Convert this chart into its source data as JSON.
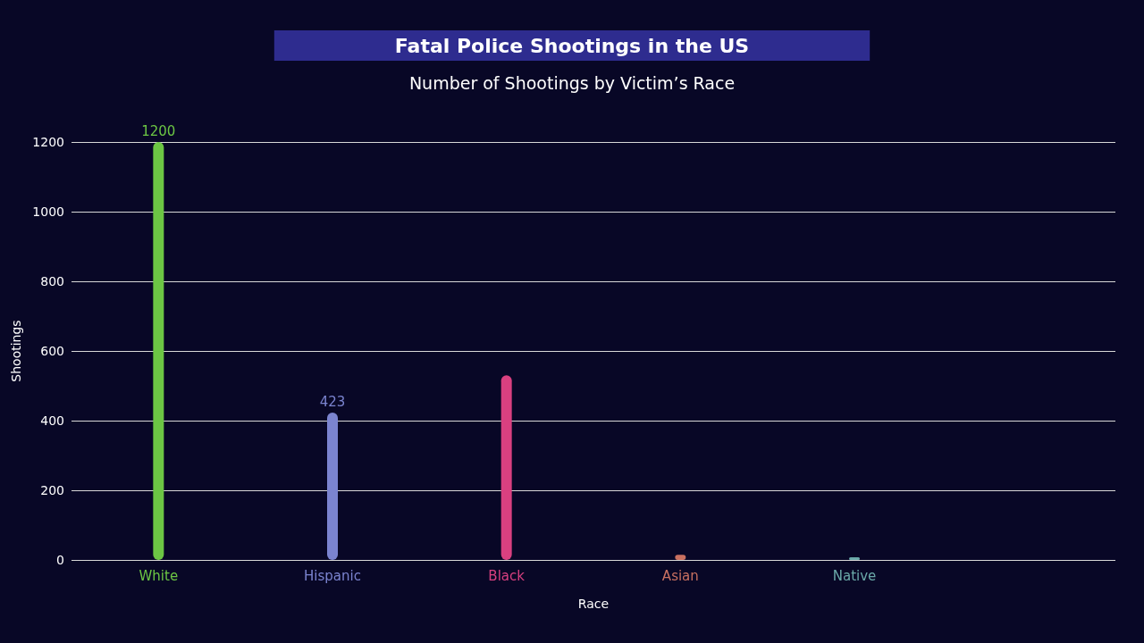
{
  "chart_data": {
    "type": "bar",
    "title": "Fatal Police Shootings in the US",
    "subtitle": "Number of Shootings by Victim’s Race",
    "xlabel": "Race",
    "ylabel": "Shootings",
    "categories": [
      "White",
      "Hispanic",
      "Black",
      "Asian",
      "Native",
      null
    ],
    "values": [
      1200,
      423,
      530,
      15,
      8,
      null
    ],
    "value_labels": [
      "1200",
      "423",
      null,
      null,
      null,
      null
    ],
    "colors": [
      "#6cc644",
      "#7b84d0",
      "#d94080",
      "#c87060",
      "#6aa8a8",
      "#808080"
    ],
    "ylim": [
      0,
      1200
    ],
    "yticks": [
      0,
      200,
      400,
      600,
      800,
      1000,
      1200
    ],
    "grid": "y"
  }
}
